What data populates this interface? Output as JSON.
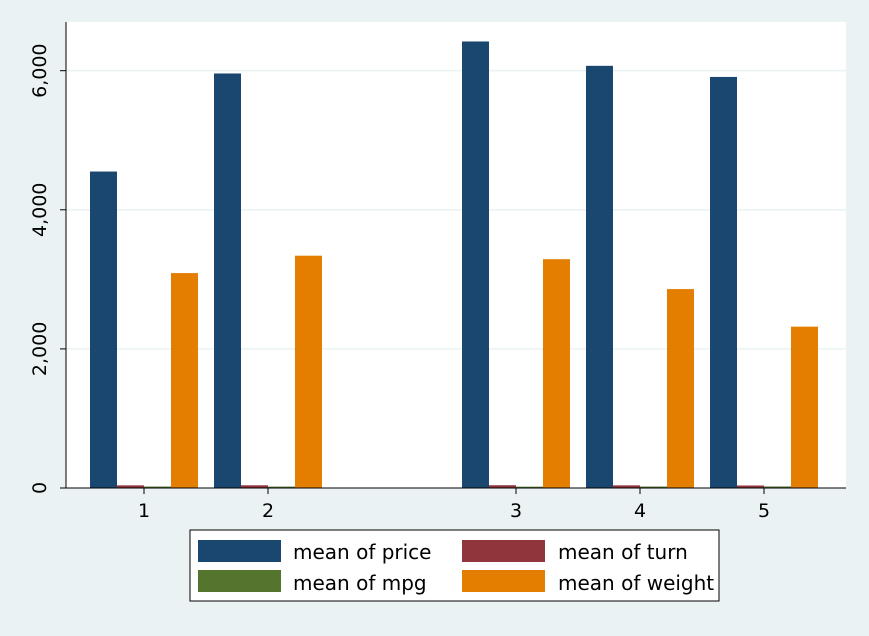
{
  "chart_data": {
    "type": "bar",
    "title": "",
    "xlabel": "",
    "ylabel": "",
    "categories": [
      "1",
      "2",
      "3",
      "4",
      "5"
    ],
    "x_ticks": [
      "1",
      "2",
      "3",
      "4",
      "5"
    ],
    "y_ticks": [
      "0",
      "2,000",
      "4,000",
      "6,000"
    ],
    "ylim": [
      0,
      6700
    ],
    "grid": true,
    "legend_position": "bottom",
    "series": [
      {
        "name": "mean of price",
        "color": "#1a476f",
        "values": [
          4550,
          5960,
          6420,
          6070,
          5910
        ]
      },
      {
        "name": "mean of turn",
        "color": "#90353b",
        "values": [
          38,
          39,
          40,
          38,
          36
        ]
      },
      {
        "name": "mean of mpg",
        "color": "#55752f",
        "values": [
          21,
          20,
          19,
          21,
          22
        ]
      },
      {
        "name": "mean of weight",
        "color": "#e37e00",
        "values": [
          3090,
          3340,
          3290,
          2860,
          2320
        ]
      }
    ],
    "legend": [
      {
        "label": "mean of price",
        "color": "#1a476f"
      },
      {
        "label": "mean of turn",
        "color": "#90353b"
      },
      {
        "label": "mean of mpg",
        "color": "#55752f"
      },
      {
        "label": "mean of weight",
        "color": "#e37e00"
      }
    ]
  }
}
